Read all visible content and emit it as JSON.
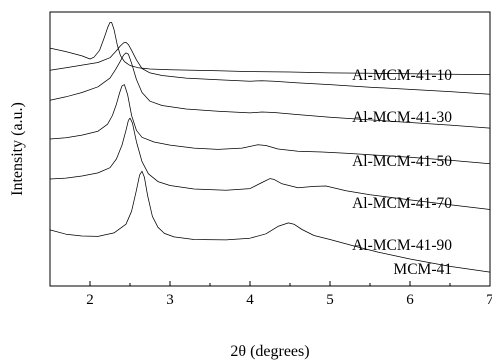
{
  "chart_data": {
    "type": "line",
    "title": "",
    "xlabel": "2θ (degrees)",
    "ylabel": "Intensity (a.u.)",
    "xlim": [
      1.5,
      7
    ],
    "x_ticks": [
      "2",
      "3",
      "4",
      "5",
      "6",
      "7"
    ],
    "y_ticks": [],
    "grid": false,
    "legend": "none",
    "series": [
      {
        "name": "Al-MCM-41-10",
        "x": [
          1.5,
          1.7,
          1.9,
          2.0,
          2.05,
          2.12,
          2.18,
          2.22,
          2.25,
          2.27,
          2.3,
          2.34,
          2.38,
          2.43,
          2.5,
          2.6,
          2.75,
          3.0,
          3.3,
          3.6,
          4.0,
          4.5,
          5.0,
          5.5,
          6.0,
          6.5,
          7.0
        ],
        "y": [
          5.47,
          5.39,
          5.29,
          5.22,
          5.26,
          5.42,
          5.72,
          5.94,
          6.06,
          6.06,
          5.9,
          5.55,
          5.3,
          5.16,
          5.07,
          5.02,
          4.99,
          4.97,
          4.96,
          4.95,
          4.93,
          4.92,
          4.9,
          4.89,
          4.88,
          4.87,
          4.86
        ]
      },
      {
        "name": "Al-MCM-41-30",
        "x": [
          1.5,
          1.7,
          1.9,
          2.1,
          2.25,
          2.32,
          2.38,
          2.42,
          2.45,
          2.48,
          2.52,
          2.58,
          2.65,
          2.75,
          2.9,
          3.2,
          3.6,
          4.0,
          4.15,
          4.3,
          4.6,
          5.0,
          5.5,
          6.0,
          6.5,
          7.0
        ],
        "y": [
          4.96,
          5.02,
          5.08,
          5.14,
          5.25,
          5.39,
          5.52,
          5.59,
          5.6,
          5.55,
          5.42,
          5.2,
          5.0,
          4.9,
          4.84,
          4.78,
          4.74,
          4.71,
          4.72,
          4.71,
          4.67,
          4.63,
          4.57,
          4.52,
          4.47,
          4.41
        ]
      },
      {
        "name": "Al-MCM-41-50",
        "x": [
          1.5,
          1.7,
          1.9,
          2.1,
          2.25,
          2.32,
          2.38,
          2.42,
          2.45,
          2.48,
          2.52,
          2.58,
          2.65,
          2.75,
          2.9,
          3.2,
          3.6,
          4.0,
          4.15,
          4.3,
          4.6,
          5.0,
          5.5,
          6.0,
          6.5,
          7.0
        ],
        "y": [
          4.27,
          4.35,
          4.45,
          4.58,
          4.78,
          4.98,
          5.17,
          5.31,
          5.36,
          5.33,
          5.12,
          4.75,
          4.45,
          4.25,
          4.15,
          4.07,
          4.02,
          3.98,
          4.0,
          3.99,
          3.94,
          3.88,
          3.82,
          3.76,
          3.7,
          3.63
        ]
      },
      {
        "name": "Al-MCM-41-70",
        "x": [
          1.5,
          1.7,
          1.9,
          2.1,
          2.22,
          2.28,
          2.33,
          2.37,
          2.4,
          2.43,
          2.47,
          2.52,
          2.58,
          2.65,
          2.8,
          3.0,
          3.3,
          3.6,
          3.9,
          4.1,
          4.2,
          4.35,
          4.6,
          4.9,
          5.2,
          5.5,
          6.0,
          6.5,
          7.0
        ],
        "y": [
          3.38,
          3.41,
          3.47,
          3.56,
          3.72,
          3.92,
          4.18,
          4.44,
          4.6,
          4.63,
          4.4,
          3.92,
          3.58,
          3.42,
          3.31,
          3.24,
          3.17,
          3.14,
          3.17,
          3.25,
          3.23,
          3.15,
          3.1,
          3.08,
          3.05,
          3.02,
          2.96,
          2.89,
          2.81
        ]
      },
      {
        "name": "Al-MCM-41-90",
        "x": [
          1.5,
          1.7,
          1.9,
          2.1,
          2.25,
          2.33,
          2.4,
          2.45,
          2.48,
          2.5,
          2.53,
          2.58,
          2.65,
          2.73,
          2.85,
          3.0,
          3.3,
          3.7,
          4.0,
          4.15,
          4.25,
          4.3,
          4.4,
          4.6,
          4.8,
          4.95,
          5.2,
          5.5,
          6.0,
          6.5,
          7.0
        ],
        "y": [
          2.46,
          2.48,
          2.53,
          2.6,
          2.72,
          2.92,
          3.24,
          3.58,
          3.81,
          3.86,
          3.75,
          3.32,
          2.86,
          2.58,
          2.4,
          2.31,
          2.23,
          2.2,
          2.24,
          2.38,
          2.47,
          2.45,
          2.35,
          2.26,
          2.29,
          2.3,
          2.19,
          2.1,
          1.98,
          1.87,
          1.76
        ]
      },
      {
        "name": "MCM-41",
        "x": [
          1.5,
          1.7,
          1.9,
          2.1,
          2.3,
          2.45,
          2.52,
          2.58,
          2.62,
          2.65,
          2.68,
          2.72,
          2.78,
          2.85,
          2.93,
          3.05,
          3.3,
          3.7,
          4.0,
          4.2,
          4.35,
          4.48,
          4.55,
          4.65,
          4.8,
          5.0,
          5.3,
          5.6,
          6.0,
          6.5,
          7.0
        ],
        "y": [
          1.29,
          1.19,
          1.15,
          1.14,
          1.22,
          1.42,
          1.72,
          2.2,
          2.55,
          2.64,
          2.5,
          2.08,
          1.6,
          1.35,
          1.21,
          1.13,
          1.07,
          1.06,
          1.1,
          1.2,
          1.37,
          1.45,
          1.42,
          1.3,
          1.16,
          1.07,
          0.92,
          0.78,
          0.62,
          0.45,
          0.32
        ]
      }
    ]
  }
}
